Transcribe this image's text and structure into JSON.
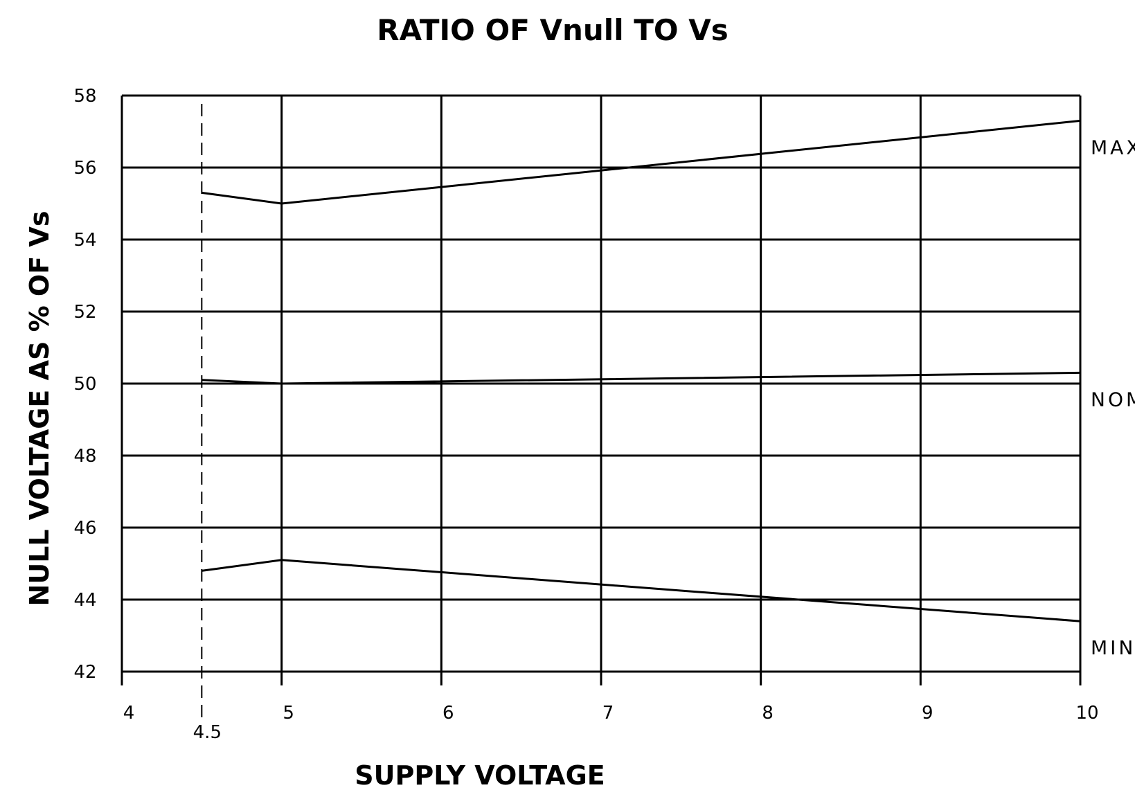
{
  "chart_data": {
    "type": "line",
    "title": "RATIO OF Vnull TO Vs",
    "xlabel": "SUPPLY VOLTAGE",
    "ylabel": "NULL VOLTAGE AS % OF Vs",
    "xlim": [
      4,
      10
    ],
    "ylim": [
      42,
      58
    ],
    "xticks": [
      4,
      5,
      6,
      7,
      8,
      9,
      10
    ],
    "xtick_labels": [
      "4",
      "5",
      "6",
      "7",
      "8",
      "9",
      "10"
    ],
    "yticks": [
      42,
      44,
      46,
      48,
      50,
      52,
      54,
      56,
      58
    ],
    "ytick_labels": [
      "42",
      "44",
      "46",
      "48",
      "50",
      "52",
      "54",
      "56",
      "58"
    ],
    "grid": true,
    "reference_line": {
      "x": 4.5,
      "label": "4.5",
      "style": "dashed"
    },
    "series": [
      {
        "name": "MAX",
        "x": [
          4.5,
          5,
          10
        ],
        "y": [
          55.3,
          55.0,
          57.3
        ]
      },
      {
        "name": "NOM",
        "x": [
          4.5,
          5,
          10
        ],
        "y": [
          50.1,
          50.0,
          50.3
        ]
      },
      {
        "name": "MIN",
        "x": [
          4.5,
          5,
          10
        ],
        "y": [
          44.8,
          45.1,
          43.4
        ]
      }
    ]
  }
}
